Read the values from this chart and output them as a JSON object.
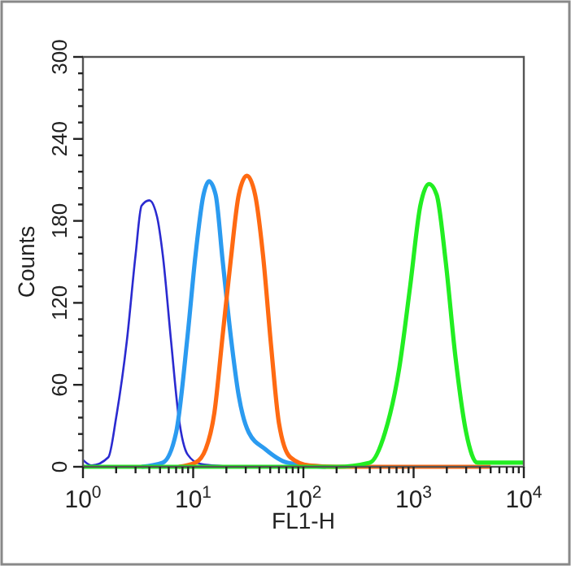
{
  "chart_data": {
    "type": "line",
    "xlabel": "FL1-H",
    "ylabel": "Counts",
    "log": "x",
    "marker": "none",
    "line_style": "solid",
    "xlim": [
      1,
      10000
    ],
    "ylim": [
      0,
      300
    ],
    "xticks": [
      {
        "value": 1,
        "label": "10$^{0}$"
      },
      {
        "value": 2,
        "label": null
      },
      {
        "value": 3,
        "label": null
      },
      {
        "value": 4,
        "label": null
      },
      {
        "value": 5,
        "label": null
      },
      {
        "value": 6,
        "label": null
      },
      {
        "value": 7,
        "label": null
      },
      {
        "value": 8,
        "label": null
      },
      {
        "value": 9,
        "label": null
      },
      {
        "value": 10,
        "label": "10$^{1}$"
      },
      {
        "value": 20,
        "label": null
      },
      {
        "value": 30,
        "label": null
      },
      {
        "value": 40,
        "label": null
      },
      {
        "value": 50,
        "label": null
      },
      {
        "value": 60,
        "label": null
      },
      {
        "value": 70,
        "label": null
      },
      {
        "value": 80,
        "label": null
      },
      {
        "value": 90,
        "label": null
      },
      {
        "value": 100,
        "label": "10$^{2}$"
      },
      {
        "value": 200,
        "label": null
      },
      {
        "value": 300,
        "label": null
      },
      {
        "value": 400,
        "label": null
      },
      {
        "value": 500,
        "label": null
      },
      {
        "value": 600,
        "label": null
      },
      {
        "value": 700,
        "label": null
      },
      {
        "value": 800,
        "label": null
      },
      {
        "value": 900,
        "label": null
      },
      {
        "value": 1000,
        "label": "10$^{3}$"
      },
      {
        "value": 2000,
        "label": null
      },
      {
        "value": 3000,
        "label": null
      },
      {
        "value": 4000,
        "label": null
      },
      {
        "value": 5000,
        "label": null
      },
      {
        "value": 6000,
        "label": null
      },
      {
        "value": 7000,
        "label": null
      },
      {
        "value": 8000,
        "label": null
      },
      {
        "value": 9000,
        "label": null
      },
      {
        "value": 10000,
        "label": "10$^{4}$"
      }
    ],
    "yticks": [
      0,
      {
        "value": 12,
        "label": null
      },
      {
        "value": 24,
        "label": null
      },
      {
        "value": 36,
        "label": null
      },
      {
        "value": 48,
        "label": null
      },
      60,
      {
        "value": 72,
        "label": null
      },
      {
        "value": 84,
        "label": null
      },
      {
        "value": 96,
        "label": null
      },
      {
        "value": 108,
        "label": null
      },
      120,
      {
        "value": 132,
        "label": null
      },
      {
        "value": 144,
        "label": null
      },
      {
        "value": 156,
        "label": null
      },
      {
        "value": 168,
        "label": null
      },
      180,
      {
        "value": 192,
        "label": null
      },
      {
        "value": 204,
        "label": null
      },
      {
        "value": 216,
        "label": null
      },
      {
        "value": 228,
        "label": null
      },
      240,
      {
        "value": 252,
        "label": null
      },
      {
        "value": 264,
        "label": null
      },
      {
        "value": 276,
        "label": null
      },
      {
        "value": 288,
        "label": null
      },
      300
    ],
    "series": [
      {
        "color": "#2a2ad0",
        "x": [
          1,
          1.2,
          1.7,
          2,
          2.5,
          3,
          3.4,
          4,
          4.7,
          5.3,
          6.3,
          7.4,
          8.9,
          11.7,
          23
        ],
        "values": [
          5,
          1,
          7,
          36,
          92,
          155,
          191,
          195,
          183,
          155,
          92,
          36,
          9,
          2,
          0
        ]
      },
      {
        "color": "#2b9bf0",
        "x": [
          3.4,
          5.3,
          7,
          8.9,
          10.5,
          12.4,
          13.9,
          16,
          18.5,
          21.9,
          25.9,
          32,
          45,
          72,
          160
        ],
        "values": [
          0,
          3,
          25,
          96,
          155,
          199,
          209,
          199,
          151,
          96,
          52,
          25,
          13,
          3,
          0
        ]
      },
      {
        "color": "#ff6a12",
        "x": [
          7.4,
          10.5,
          13,
          15.6,
          18.5,
          21.9,
          25.9,
          30.7,
          36.5,
          43,
          51,
          60,
          76,
          113,
          200,
          5000
        ],
        "values": [
          0,
          3,
          13,
          40,
          96,
          151,
          199,
          213,
          199,
          155,
          88,
          32,
          7,
          1,
          0,
          0
        ]
      },
      {
        "color": "#22ee22",
        "x": [
          1,
          200,
          400,
          550,
          740,
          930,
          1150,
          1380,
          1620,
          1950,
          2400,
          3000,
          3800,
          10000
        ],
        "values": [
          0,
          0,
          3,
          25,
          72,
          132,
          191,
          207,
          199,
          151,
          80,
          25,
          3,
          3
        ]
      }
    ]
  }
}
